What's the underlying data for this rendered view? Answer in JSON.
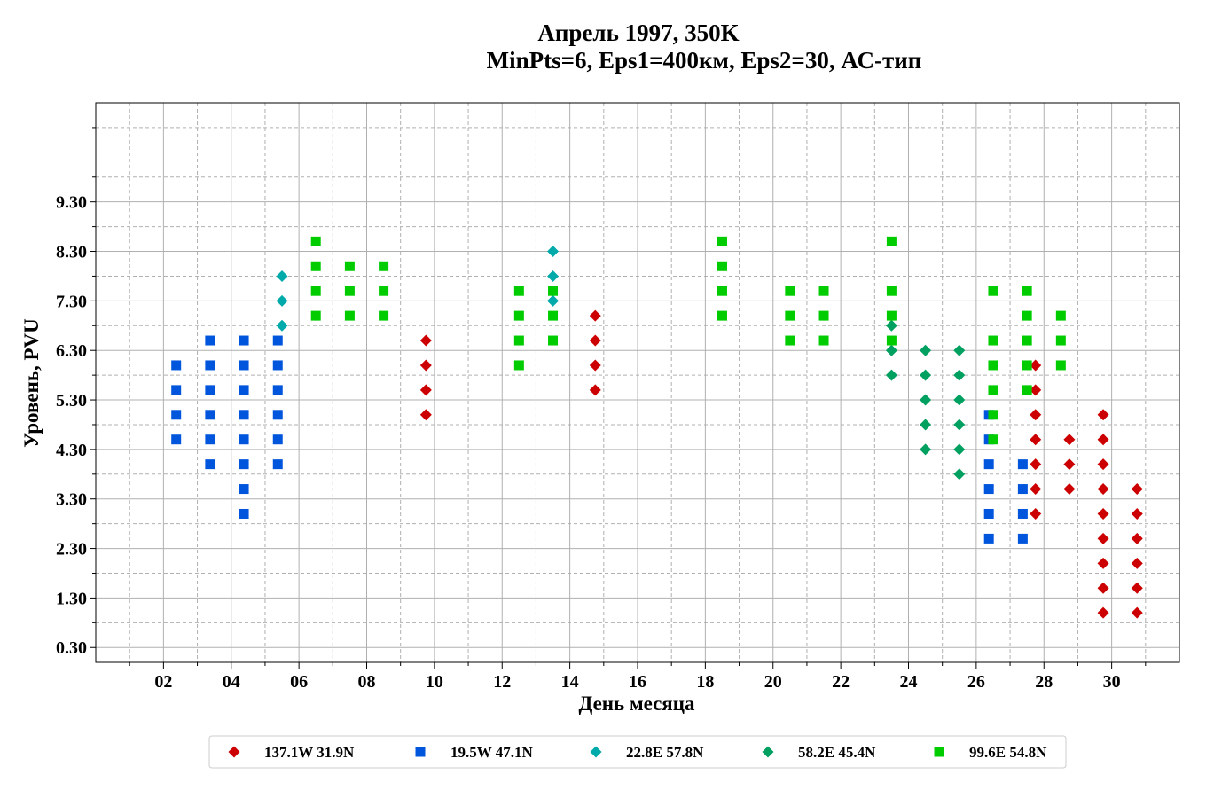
{
  "chart_data": {
    "type": "scatter",
    "title": "Апрель 1997, 350K",
    "subtitle": "MinPts=6, Eps1=400км, Eps2=30, АС-тип",
    "xlabel": "День месяца",
    "ylabel": "Уровень, PVU",
    "xlim": [
      0,
      32
    ],
    "ylim": [
      0,
      11.3
    ],
    "x_ticks": [
      2,
      4,
      6,
      8,
      10,
      12,
      14,
      16,
      18,
      20,
      22,
      24,
      26,
      28,
      30
    ],
    "x_tick_labels": [
      "02",
      "04",
      "06",
      "08",
      "10",
      "12",
      "14",
      "16",
      "18",
      "20",
      "22",
      "24",
      "26",
      "28",
      "30"
    ],
    "y_ticks": [
      0.3,
      1.3,
      2.3,
      3.3,
      4.3,
      5.3,
      6.3,
      7.3,
      8.3,
      9.3
    ],
    "y_tick_labels": [
      "0.30",
      "1.30",
      "2.30",
      "3.30",
      "4.30",
      "5.30",
      "6.30",
      "7.30",
      "8.30",
      "9.30"
    ],
    "grid": true,
    "legend_position": "bottom-center",
    "series": [
      {
        "name": "137.1W 31.9N",
        "marker": "diamond",
        "color": "#cc0000",
        "points": [
          [
            9.75,
            5.0
          ],
          [
            9.75,
            5.5
          ],
          [
            9.75,
            6.0
          ],
          [
            9.75,
            6.5
          ],
          [
            14.75,
            5.5
          ],
          [
            14.75,
            6.0
          ],
          [
            14.75,
            6.5
          ],
          [
            14.75,
            7.0
          ],
          [
            27.75,
            3.0
          ],
          [
            27.75,
            3.5
          ],
          [
            27.75,
            4.0
          ],
          [
            27.75,
            4.5
          ],
          [
            27.75,
            5.0
          ],
          [
            27.75,
            5.5
          ],
          [
            27.75,
            6.0
          ],
          [
            28.75,
            3.5
          ],
          [
            28.75,
            4.0
          ],
          [
            28.75,
            4.5
          ],
          [
            29.75,
            1.0
          ],
          [
            29.75,
            1.5
          ],
          [
            29.75,
            2.0
          ],
          [
            29.75,
            2.5
          ],
          [
            29.75,
            3.0
          ],
          [
            29.75,
            3.5
          ],
          [
            29.75,
            4.0
          ],
          [
            29.75,
            4.5
          ],
          [
            29.75,
            5.0
          ],
          [
            30.75,
            1.0
          ],
          [
            30.75,
            1.5
          ],
          [
            30.75,
            2.0
          ],
          [
            30.75,
            2.5
          ],
          [
            30.75,
            3.0
          ],
          [
            30.75,
            3.5
          ]
        ]
      },
      {
        "name": "19.5W 47.1N",
        "marker": "square",
        "color": "#0055dd",
        "points": [
          [
            2.375,
            4.5
          ],
          [
            2.375,
            5.0
          ],
          [
            2.375,
            5.5
          ],
          [
            2.375,
            6.0
          ],
          [
            3.375,
            4.0
          ],
          [
            3.375,
            4.5
          ],
          [
            3.375,
            5.0
          ],
          [
            3.375,
            5.5
          ],
          [
            3.375,
            6.0
          ],
          [
            3.375,
            6.5
          ],
          [
            4.375,
            3.0
          ],
          [
            4.375,
            3.5
          ],
          [
            4.375,
            4.0
          ],
          [
            4.375,
            4.5
          ],
          [
            4.375,
            5.0
          ],
          [
            4.375,
            5.5
          ],
          [
            4.375,
            6.0
          ],
          [
            4.375,
            6.5
          ],
          [
            5.375,
            4.0
          ],
          [
            5.375,
            4.5
          ],
          [
            5.375,
            5.0
          ],
          [
            5.375,
            5.5
          ],
          [
            5.375,
            6.0
          ],
          [
            5.375,
            6.5
          ],
          [
            26.375,
            2.5
          ],
          [
            26.375,
            3.0
          ],
          [
            26.375,
            3.5
          ],
          [
            26.375,
            4.0
          ],
          [
            26.375,
            4.5
          ],
          [
            26.375,
            5.0
          ],
          [
            27.375,
            2.5
          ],
          [
            27.375,
            3.0
          ],
          [
            27.375,
            3.5
          ],
          [
            27.375,
            4.0
          ]
        ]
      },
      {
        "name": "22.8E 57.8N",
        "marker": "diamond",
        "color": "#00aaaa",
        "points": [
          [
            5.5,
            6.8
          ],
          [
            5.5,
            7.3
          ],
          [
            5.5,
            7.8
          ],
          [
            13.5,
            7.3
          ],
          [
            13.5,
            7.8
          ],
          [
            13.5,
            8.3
          ]
        ]
      },
      {
        "name": "58.2E 45.4N",
        "marker": "diamond",
        "color": "#00a060",
        "points": [
          [
            23.5,
            5.8
          ],
          [
            23.5,
            6.3
          ],
          [
            23.5,
            6.8
          ],
          [
            24.5,
            4.3
          ],
          [
            24.5,
            4.8
          ],
          [
            24.5,
            5.3
          ],
          [
            24.5,
            5.8
          ],
          [
            24.5,
            6.3
          ],
          [
            25.5,
            3.8
          ],
          [
            25.5,
            4.3
          ],
          [
            25.5,
            4.8
          ],
          [
            25.5,
            5.3
          ],
          [
            25.5,
            5.8
          ],
          [
            25.5,
            6.3
          ]
        ]
      },
      {
        "name": "99.6E 54.8N",
        "marker": "square",
        "color": "#00cc00",
        "points": [
          [
            6.5,
            7.0
          ],
          [
            6.5,
            7.5
          ],
          [
            6.5,
            8.0
          ],
          [
            6.5,
            8.5
          ],
          [
            7.5,
            7.0
          ],
          [
            7.5,
            7.5
          ],
          [
            7.5,
            8.0
          ],
          [
            8.5,
            7.0
          ],
          [
            8.5,
            7.5
          ],
          [
            8.5,
            8.0
          ],
          [
            12.5,
            6.0
          ],
          [
            12.5,
            6.5
          ],
          [
            12.5,
            7.0
          ],
          [
            12.5,
            7.5
          ],
          [
            13.5,
            6.5
          ],
          [
            13.5,
            7.0
          ],
          [
            13.5,
            7.5
          ],
          [
            18.5,
            7.0
          ],
          [
            18.5,
            7.5
          ],
          [
            18.5,
            8.0
          ],
          [
            18.5,
            8.5
          ],
          [
            20.5,
            6.5
          ],
          [
            20.5,
            7.0
          ],
          [
            20.5,
            7.5
          ],
          [
            21.5,
            6.5
          ],
          [
            21.5,
            7.0
          ],
          [
            21.5,
            7.5
          ],
          [
            23.5,
            6.5
          ],
          [
            23.5,
            7.0
          ],
          [
            23.5,
            7.5
          ],
          [
            23.5,
            8.5
          ],
          [
            26.5,
            4.5
          ],
          [
            26.5,
            5.0
          ],
          [
            26.5,
            5.5
          ],
          [
            26.5,
            6.0
          ],
          [
            26.5,
            6.5
          ],
          [
            26.5,
            7.5
          ],
          [
            27.5,
            5.5
          ],
          [
            27.5,
            6.0
          ],
          [
            27.5,
            6.5
          ],
          [
            27.5,
            7.0
          ],
          [
            27.5,
            7.5
          ],
          [
            28.5,
            6.0
          ],
          [
            28.5,
            6.5
          ],
          [
            28.5,
            7.0
          ]
        ]
      }
    ]
  }
}
